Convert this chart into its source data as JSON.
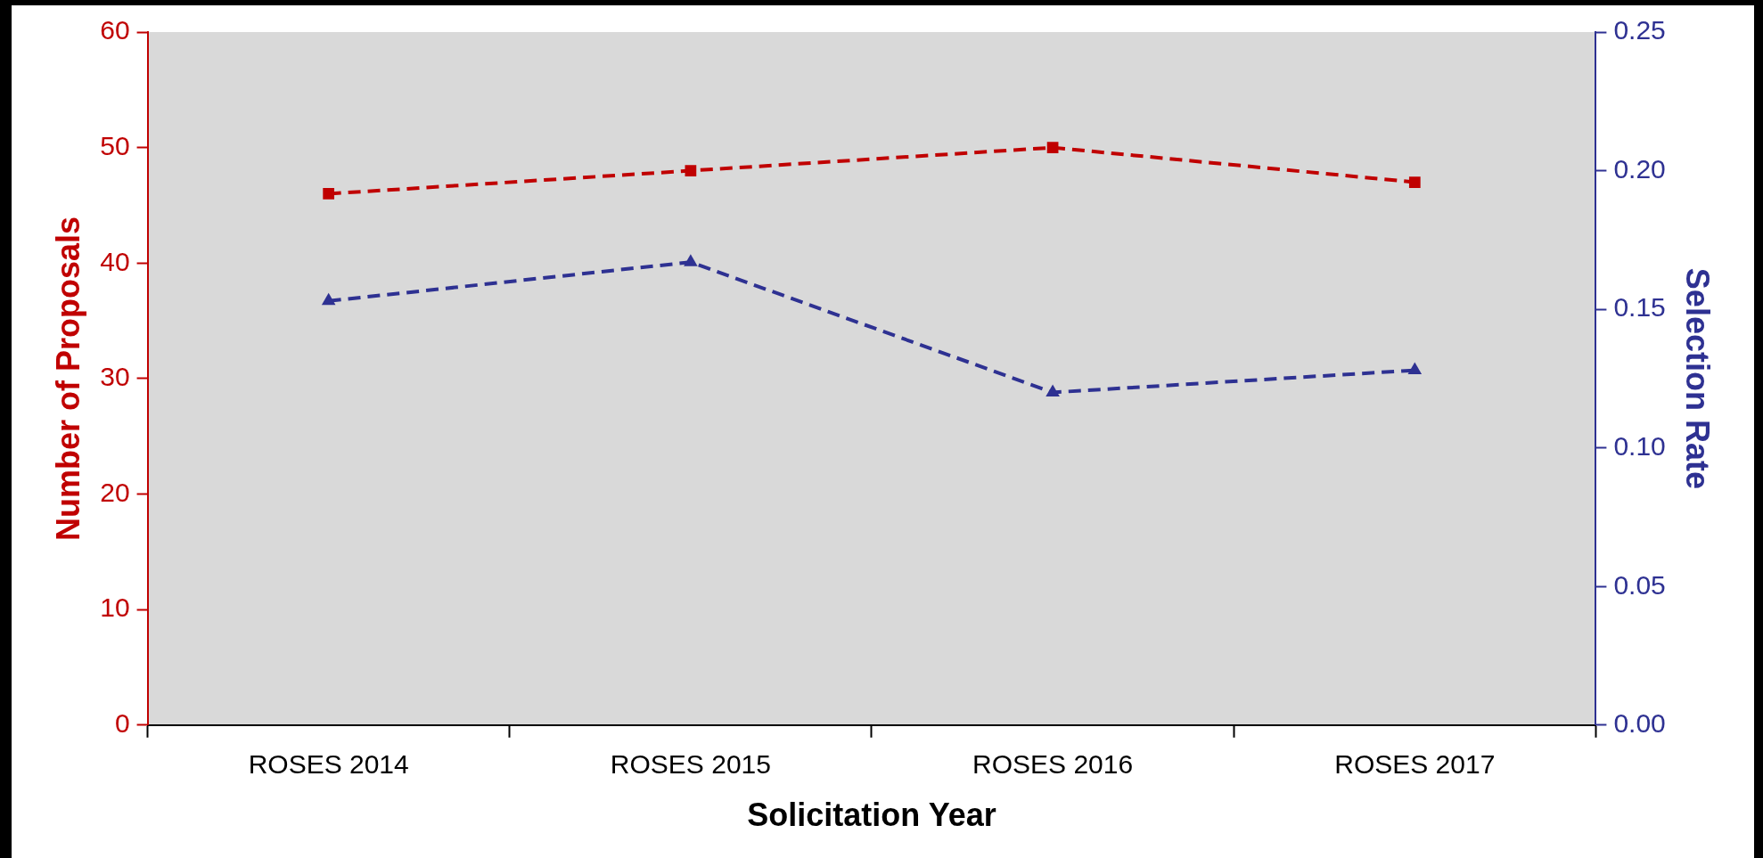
{
  "chart_data": {
    "type": "line",
    "xlabel": "Solicitation Year",
    "ylabel": "Number of Proposals",
    "y2label": "Selection Rate",
    "categories": [
      "ROSES 2014",
      "ROSES 2015",
      "ROSES 2016",
      "ROSES 2017"
    ],
    "series": [
      {
        "color": "#c00000",
        "values": [
          46,
          48,
          50,
          47
        ],
        "marker": "square",
        "line_style": "dashed"
      },
      {
        "color": "#2e3192",
        "axis": "y2",
        "values": [
          0.153,
          0.167,
          0.12,
          0.128
        ],
        "marker": "triangle",
        "line_style": "dashed"
      }
    ],
    "ylim": [
      0,
      60
    ],
    "yticks": [
      0,
      10,
      20,
      30,
      40,
      50,
      60
    ],
    "y2lim": [
      0,
      0.25
    ],
    "y2ticks": [
      {
        "value": 0,
        "label": "0.00"
      },
      {
        "value": 0.05,
        "label": "0.05"
      },
      {
        "value": 0.1,
        "label": "0.10"
      },
      {
        "value": 0.15,
        "label": "0.15"
      },
      {
        "value": 0.2,
        "label": "0.20"
      },
      {
        "value": 0.25,
        "label": "0.25"
      }
    ],
    "grid": false,
    "legend": false
  }
}
